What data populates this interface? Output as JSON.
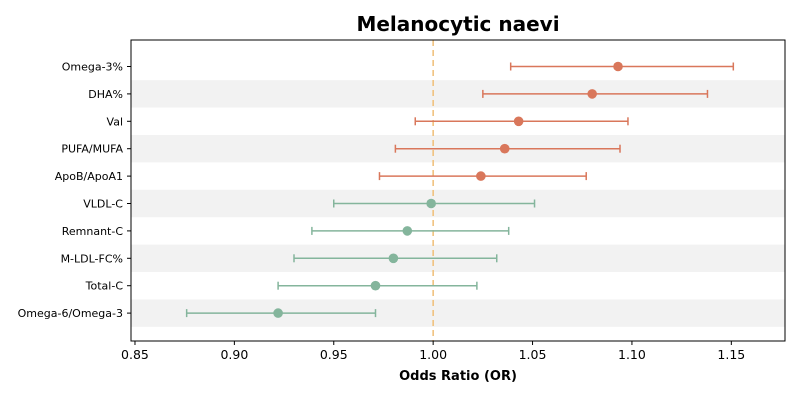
{
  "chart_data": {
    "type": "forest",
    "title": "Melanocytic naevi",
    "xlabel": "Odds Ratio (OR)",
    "xlim": [
      0.848,
      1.177
    ],
    "xticks": [
      0.85,
      0.9,
      0.95,
      1.0,
      1.05,
      1.1,
      1.15
    ],
    "xtick_labels": [
      "0.85",
      "0.90",
      "0.95",
      "1.00",
      "1.05",
      "1.10",
      "1.15"
    ],
    "reference_line": 1.0,
    "alternating_row_shading": true,
    "colors": {
      "positive": "#d9775b",
      "negative": "#84b59c",
      "reference_line": "#f0c27f",
      "row_shading": "#f2f2f2",
      "axis": "#000000"
    },
    "rows": [
      {
        "label": "Omega-3%",
        "or": 1.093,
        "ci_low": 1.039,
        "ci_high": 1.151
      },
      {
        "label": "DHA%",
        "or": 1.08,
        "ci_low": 1.025,
        "ci_high": 1.138
      },
      {
        "label": "Val",
        "or": 1.043,
        "ci_low": 0.991,
        "ci_high": 1.098
      },
      {
        "label": "PUFA/MUFA",
        "or": 1.036,
        "ci_low": 0.981,
        "ci_high": 1.094
      },
      {
        "label": "ApoB/ApoA1",
        "or": 1.024,
        "ci_low": 0.973,
        "ci_high": 1.077
      },
      {
        "label": "VLDL-C",
        "or": 0.999,
        "ci_low": 0.95,
        "ci_high": 1.051
      },
      {
        "label": "Remnant-C",
        "or": 0.987,
        "ci_low": 0.939,
        "ci_high": 1.038
      },
      {
        "label": "M-LDL-FC%",
        "or": 0.98,
        "ci_low": 0.93,
        "ci_high": 1.032
      },
      {
        "label": "Total-C",
        "or": 0.971,
        "ci_low": 0.922,
        "ci_high": 1.022
      },
      {
        "label": "Omega-6/Omega-3",
        "or": 0.922,
        "ci_low": 0.876,
        "ci_high": 0.971
      }
    ]
  }
}
